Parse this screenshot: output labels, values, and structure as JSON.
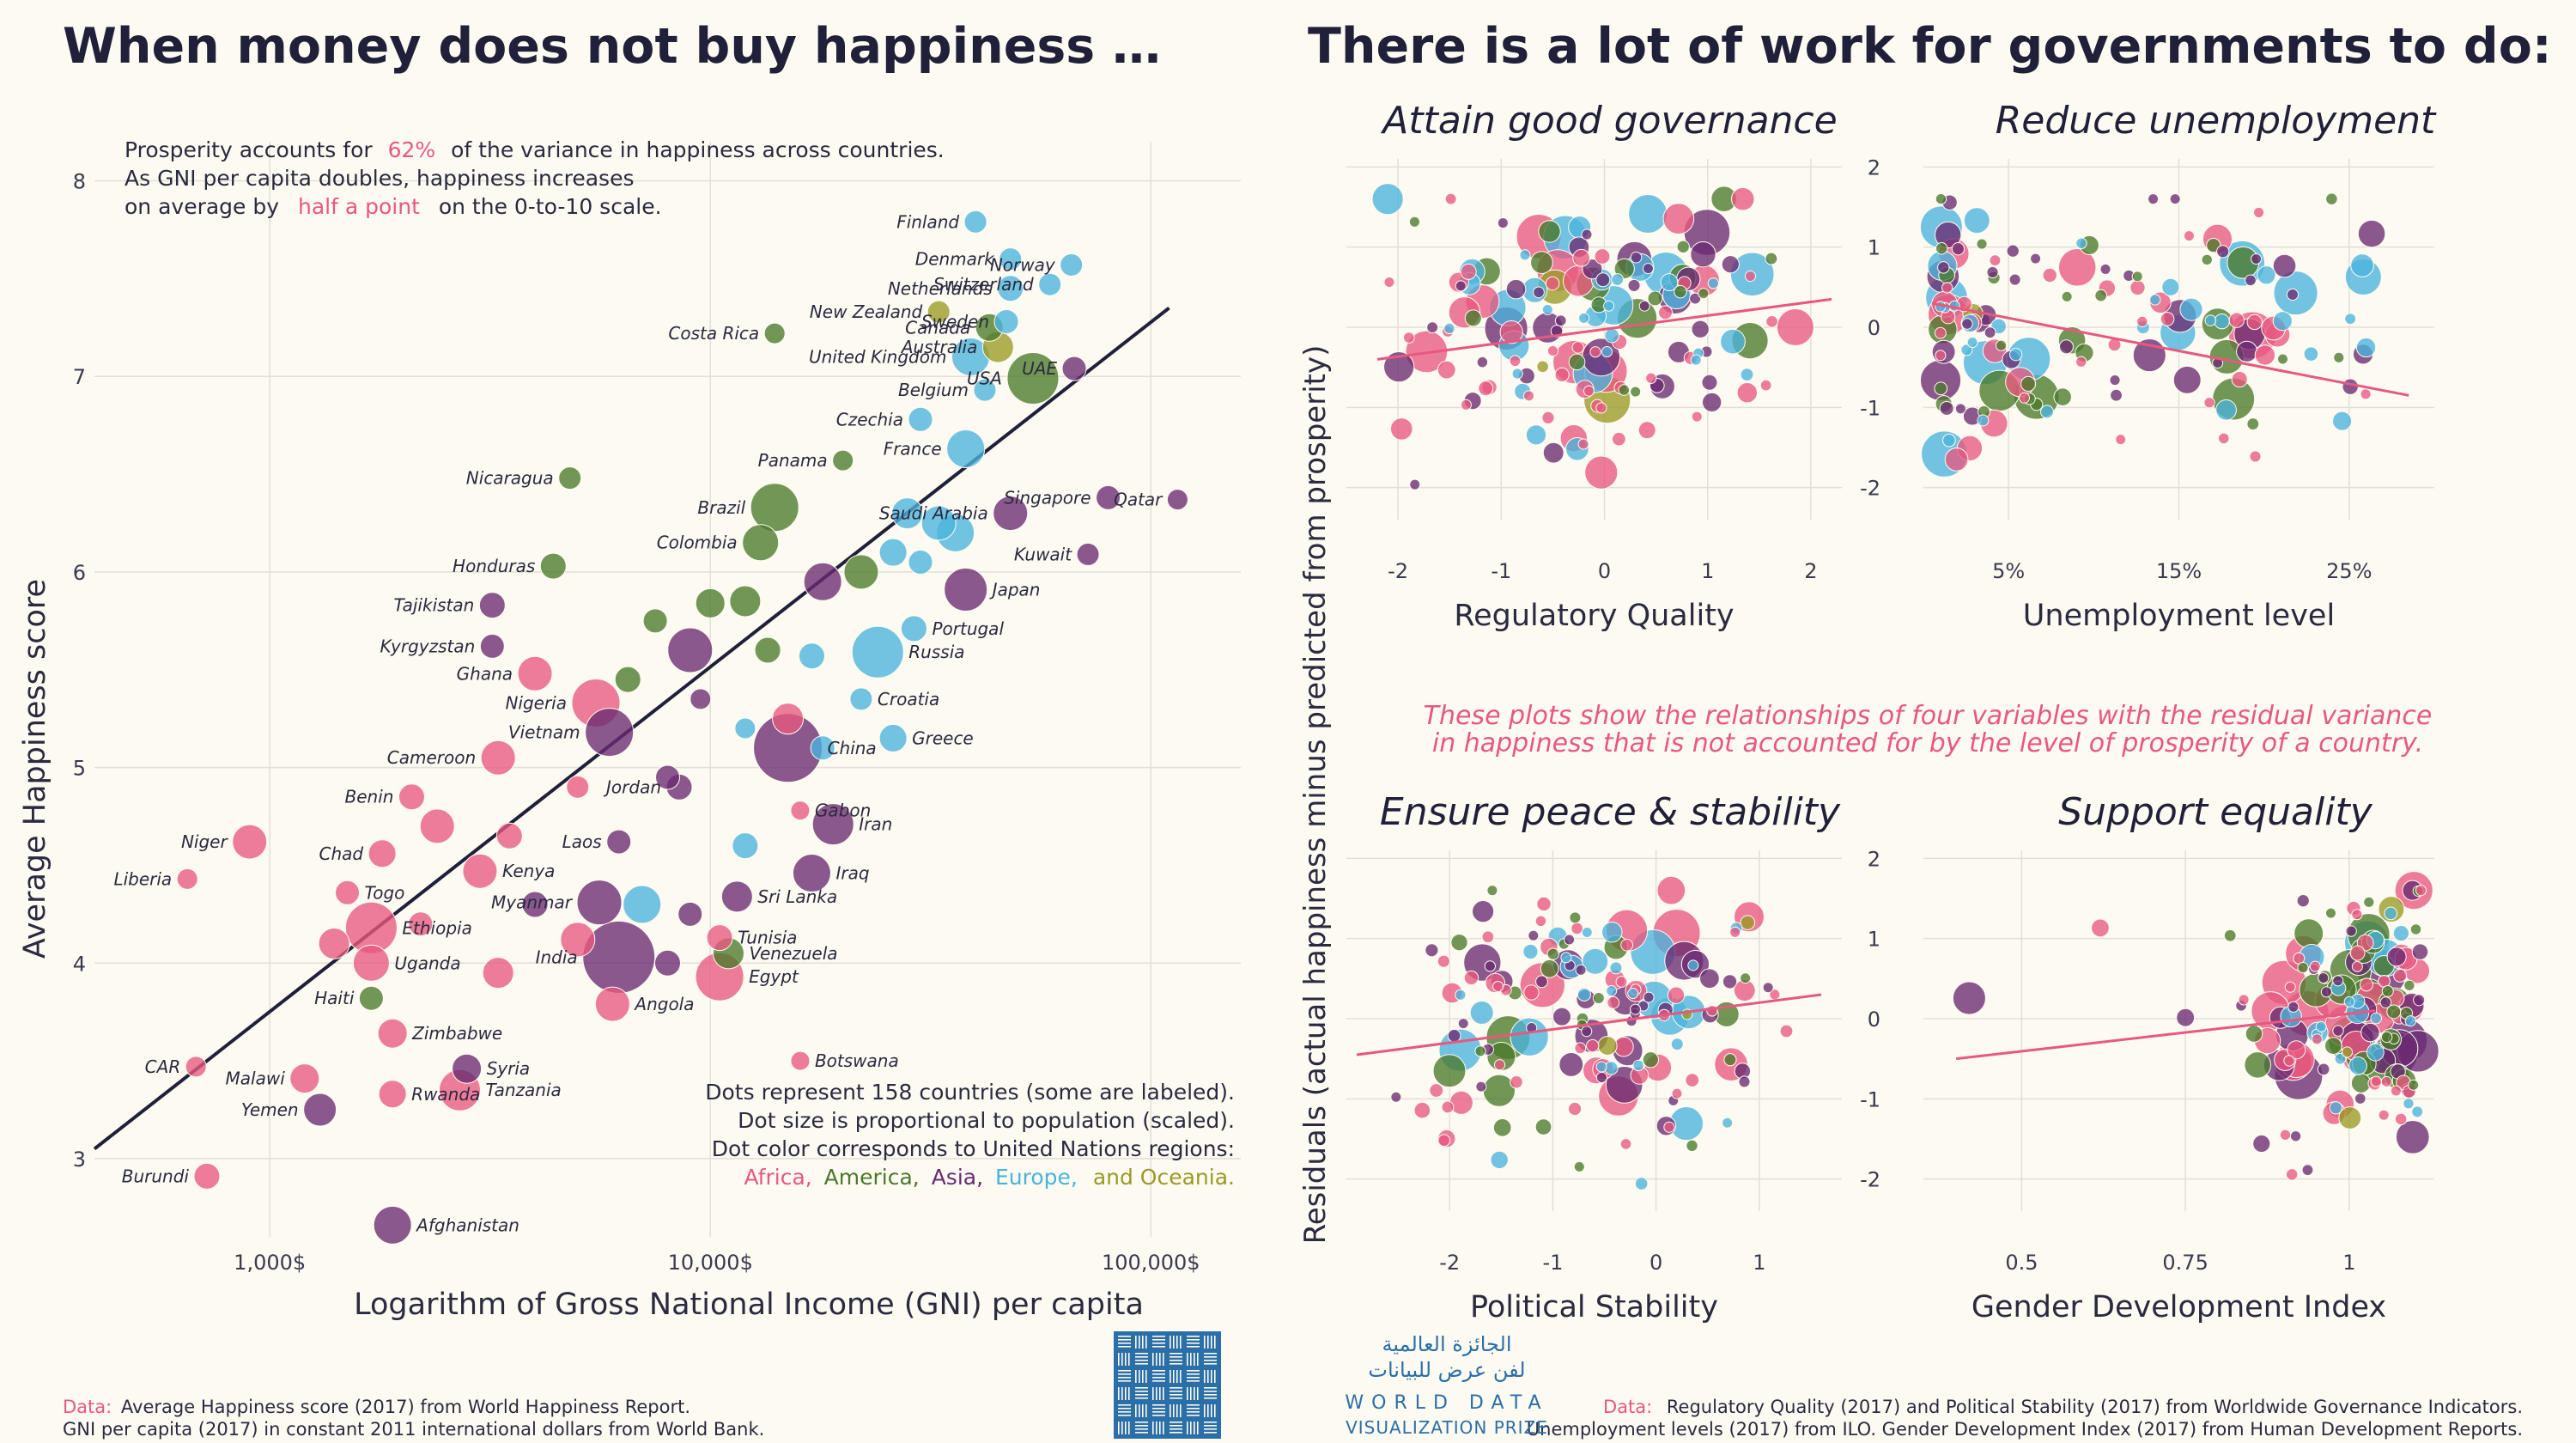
{
  "titles": {
    "left": "When money does not buy happiness …",
    "right": "There is a lot of work for governments to do:"
  },
  "colors": {
    "Africa": "#e8587f",
    "America": "#4a7a2a",
    "Asia": "#6a2a72",
    "Europe": "#4ab3dc",
    "Oceania": "#9a9a25",
    "fit_main": "#20203a",
    "fit_small": "#e8587f"
  },
  "main_notes": {
    "line1_a": "Prosperity accounts for",
    "line1_b": "62%",
    "line1_c": "of the variance in happiness across countries.",
    "line2": "As GNI per capita doubles, happiness increases",
    "line3_a": "on average by",
    "line3_b": "half a point",
    "line3_c": "on the 0-to-10 scale.",
    "legend1": "Dots represent 158 countries (some are labeled).",
    "legend2": "Dot size is proportional to population (scaled).",
    "legend3": "Dot color corresponds to United Nations regions:",
    "legend_africa": "Africa,",
    "legend_america": "America,",
    "legend_asia": "Asia,",
    "legend_europe": "Europe,",
    "legend_oceania": "and Oceania."
  },
  "residual_note": {
    "line1": "These plots show the relationships of four variables with the residual variance",
    "line2": "in happiness that is not accounted for by the level of prosperity of a country."
  },
  "shared_ylabel": "Residuals (actual happiness minus predicted from prosperity)",
  "sources": {
    "left_a": "Data:",
    "left_b": "Average Happiness score (2017) from World Happiness Report.",
    "left_c": "GNI per capita (2017) in constant 2011 international dollars from World Bank.",
    "right_a": "Data:",
    "right_b": "Regulatory Quality (2017) and Political Stability (2017) from Worldwide Governance Indicators.",
    "right_c": "Unemployment levels (2017) from ILO. Gender Development Index (2017) from Human Development Reports."
  },
  "logo": {
    "arabic1": "الجائزة العالمية",
    "arabic2": "لفن عرض للبيانات",
    "en1": "WORLD DATA",
    "en2": "VISUALIZATION PRIZE"
  },
  "chart_data": [
    {
      "type": "scatter",
      "title": "When money does not buy happiness …",
      "xlabel": "Logarithm of Gross National Income (GNI) per capita",
      "ylabel": "Average Happiness score",
      "xscale": "log",
      "xlim": [
        400,
        160000
      ],
      "ylim": [
        2.6,
        8.2
      ],
      "xticks": [
        1000,
        10000,
        100000
      ],
      "xtick_labels": [
        "1,000$",
        "10,000$",
        "100,000$"
      ],
      "yticks": [
        3,
        4,
        5,
        6,
        7,
        8
      ],
      "grid": true,
      "fit_line": {
        "x": [
          400,
          110000
        ],
        "y": [
          3.05,
          7.35
        ]
      },
      "labeled_points": [
        {
          "name": "Finland",
          "gni": 40000,
          "happiness": 7.79,
          "region": "Europe",
          "size": 13
        },
        {
          "name": "Denmark",
          "gni": 48000,
          "happiness": 7.6,
          "region": "Europe",
          "size": 13
        },
        {
          "name": "Norway",
          "gni": 66000,
          "happiness": 7.57,
          "region": "Europe",
          "size": 13
        },
        {
          "name": "Netherlands",
          "gni": 48000,
          "happiness": 7.45,
          "region": "Europe",
          "size": 15
        },
        {
          "name": "Switzerland",
          "gni": 59000,
          "happiness": 7.47,
          "region": "Europe",
          "size": 13
        },
        {
          "name": "New Zealand",
          "gni": 33000,
          "happiness": 7.33,
          "region": "Oceania",
          "size": 13
        },
        {
          "name": "Canada",
          "gni": 43000,
          "happiness": 7.25,
          "region": "America",
          "size": 16
        },
        {
          "name": "Sweden",
          "gni": 47000,
          "happiness": 7.28,
          "region": "Europe",
          "size": 14
        },
        {
          "name": "Costa Rica",
          "gni": 14000,
          "happiness": 7.22,
          "region": "America",
          "size": 12
        },
        {
          "name": "UAE",
          "gni": 67000,
          "happiness": 7.04,
          "region": "Asia",
          "size": 14
        },
        {
          "name": "United Kingdom",
          "gni": 39000,
          "happiness": 7.1,
          "region": "Europe",
          "size": 22
        },
        {
          "name": "Australia",
          "gni": 45000,
          "happiness": 7.15,
          "region": "Oceania",
          "size": 18
        },
        {
          "name": "USA",
          "gni": 54000,
          "happiness": 6.99,
          "region": "America",
          "size": 30
        },
        {
          "name": "Belgium",
          "gni": 42000,
          "happiness": 6.93,
          "region": "Europe",
          "size": 13
        },
        {
          "name": "Czechia",
          "gni": 30000,
          "happiness": 6.78,
          "region": "Europe",
          "size": 14
        },
        {
          "name": "France",
          "gni": 38000,
          "happiness": 6.63,
          "region": "Europe",
          "size": 22
        },
        {
          "name": "Panama",
          "gni": 20000,
          "happiness": 6.57,
          "region": "America",
          "size": 12
        },
        {
          "name": "Nicaragua",
          "gni": 4800,
          "happiness": 6.48,
          "region": "America",
          "size": 13
        },
        {
          "name": "Singapore",
          "gni": 80000,
          "happiness": 6.38,
          "region": "Asia",
          "size": 14
        },
        {
          "name": "Qatar",
          "gni": 115000,
          "happiness": 6.37,
          "region": "Asia",
          "size": 12
        },
        {
          "name": "Brazil",
          "gni": 14000,
          "happiness": 6.33,
          "region": "America",
          "size": 28
        },
        {
          "name": "Saudi Arabia",
          "gni": 48000,
          "happiness": 6.3,
          "region": "Asia",
          "size": 20
        },
        {
          "name": "Colombia",
          "gni": 13000,
          "happiness": 6.15,
          "region": "America",
          "size": 21
        },
        {
          "name": "Kuwait",
          "gni": 72000,
          "happiness": 6.09,
          "region": "Asia",
          "size": 13
        },
        {
          "name": "Honduras",
          "gni": 4400,
          "happiness": 6.03,
          "region": "America",
          "size": 15
        },
        {
          "name": "Japan",
          "gni": 38000,
          "happiness": 5.91,
          "region": "Asia",
          "size": 25
        },
        {
          "name": "Tajikistan",
          "gni": 3200,
          "happiness": 5.83,
          "region": "Asia",
          "size": 15
        },
        {
          "name": "Portugal",
          "gni": 29000,
          "happiness": 5.71,
          "region": "Europe",
          "size": 15
        },
        {
          "name": "Kyrgyzstan",
          "gni": 3200,
          "happiness": 5.62,
          "region": "Asia",
          "size": 14
        },
        {
          "name": "Russia",
          "gni": 24000,
          "happiness": 5.59,
          "region": "Europe",
          "size": 30
        },
        {
          "name": "Ghana",
          "gni": 4000,
          "happiness": 5.48,
          "region": "Africa",
          "size": 20
        },
        {
          "name": "Nigeria",
          "gni": 5500,
          "happiness": 5.33,
          "region": "Africa",
          "size": 28
        },
        {
          "name": "Croatia",
          "gni": 22000,
          "happiness": 5.35,
          "region": "Europe",
          "size": 13
        },
        {
          "name": "Vietnam",
          "gni": 5900,
          "happiness": 5.18,
          "region": "Asia",
          "size": 28
        },
        {
          "name": "Greece",
          "gni": 26000,
          "happiness": 5.15,
          "region": "Europe",
          "size": 16
        },
        {
          "name": "Cameroon",
          "gni": 3300,
          "happiness": 5.05,
          "region": "Africa",
          "size": 20
        },
        {
          "name": "China",
          "gni": 15000,
          "happiness": 5.1,
          "region": "Asia",
          "size": 40
        },
        {
          "name": "Jordan",
          "gni": 8500,
          "happiness": 4.9,
          "region": "Asia",
          "size": 15
        },
        {
          "name": "Benin",
          "gni": 2100,
          "happiness": 4.85,
          "region": "Africa",
          "size": 15
        },
        {
          "name": "Gabon",
          "gni": 16000,
          "happiness": 4.78,
          "region": "Africa",
          "size": 11
        },
        {
          "name": "Iran",
          "gni": 19000,
          "happiness": 4.71,
          "region": "Asia",
          "size": 24
        },
        {
          "name": "Niger",
          "gni": 900,
          "happiness": 4.62,
          "region": "Africa",
          "size": 20
        },
        {
          "name": "Chad",
          "gni": 1800,
          "happiness": 4.56,
          "region": "Africa",
          "size": 16
        },
        {
          "name": "Laos",
          "gni": 6200,
          "happiness": 4.62,
          "region": "Asia",
          "size": 14
        },
        {
          "name": "Kenya",
          "gni": 3000,
          "happiness": 4.47,
          "region": "Africa",
          "size": 20
        },
        {
          "name": "Liberia",
          "gni": 650,
          "happiness": 4.43,
          "region": "Africa",
          "size": 12
        },
        {
          "name": "Iraq",
          "gni": 17000,
          "happiness": 4.46,
          "region": "Asia",
          "size": 22
        },
        {
          "name": "Togo",
          "gni": 1500,
          "happiness": 4.36,
          "region": "Africa",
          "size": 14
        },
        {
          "name": "Sri Lanka",
          "gni": 11500,
          "happiness": 4.34,
          "region": "Asia",
          "size": 18
        },
        {
          "name": "Myanmar",
          "gni": 5600,
          "happiness": 4.31,
          "region": "Asia",
          "size": 26
        },
        {
          "name": "Ethiopia",
          "gni": 1700,
          "happiness": 4.18,
          "region": "Africa",
          "size": 30
        },
        {
          "name": "Tunisia",
          "gni": 10500,
          "happiness": 4.13,
          "region": "Africa",
          "size": 15
        },
        {
          "name": "India",
          "gni": 6200,
          "happiness": 4.03,
          "region": "Asia",
          "size": 42
        },
        {
          "name": "Uganda",
          "gni": 1700,
          "happiness": 4.0,
          "region": "Africa",
          "size": 21
        },
        {
          "name": "Venezuela",
          "gni": 11000,
          "happiness": 4.05,
          "region": "America",
          "size": 18
        },
        {
          "name": "Egypt",
          "gni": 10500,
          "happiness": 3.93,
          "region": "Africa",
          "size": 28
        },
        {
          "name": "Haiti",
          "gni": 1700,
          "happiness": 3.82,
          "region": "America",
          "size": 14
        },
        {
          "name": "Angola",
          "gni": 6000,
          "happiness": 3.79,
          "region": "Africa",
          "size": 20
        },
        {
          "name": "Zimbabwe",
          "gni": 1900,
          "happiness": 3.64,
          "region": "Africa",
          "size": 17
        },
        {
          "name": "Botswana",
          "gni": 16000,
          "happiness": 3.5,
          "region": "Africa",
          "size": 11
        },
        {
          "name": "CAR",
          "gni": 680,
          "happiness": 3.47,
          "region": "Africa",
          "size": 12
        },
        {
          "name": "Malawi",
          "gni": 1200,
          "happiness": 3.41,
          "region": "Africa",
          "size": 17
        },
        {
          "name": "Syria",
          "gni": 2800,
          "happiness": 3.46,
          "region": "Asia",
          "size": 17
        },
        {
          "name": "Tanzania",
          "gni": 2700,
          "happiness": 3.35,
          "region": "Africa",
          "size": 24
        },
        {
          "name": "Yemen",
          "gni": 1300,
          "happiness": 3.25,
          "region": "Asia",
          "size": 19
        },
        {
          "name": "Rwanda",
          "gni": 1900,
          "happiness": 3.33,
          "region": "Africa",
          "size": 16
        },
        {
          "name": "Burundi",
          "gni": 720,
          "happiness": 2.91,
          "region": "Africa",
          "size": 15
        },
        {
          "name": "Afghanistan",
          "gni": 1900,
          "happiness": 2.66,
          "region": "Asia",
          "size": 22
        }
      ],
      "unlabeled_points": [
        {
          "gni": 28000,
          "happiness": 6.3,
          "region": "Europe",
          "size": 18
        },
        {
          "gni": 33000,
          "happiness": 6.25,
          "region": "Europe",
          "size": 20
        },
        {
          "gni": 36000,
          "happiness": 6.2,
          "region": "Europe",
          "size": 22
        },
        {
          "name": "",
          "gni": 26000,
          "happiness": 6.1,
          "region": "Europe",
          "size": 16
        },
        {
          "gni": 30000,
          "happiness": 6.05,
          "region": "Europe",
          "size": 14
        },
        {
          "gni": 22000,
          "happiness": 6.0,
          "region": "America",
          "size": 20
        },
        {
          "gni": 18000,
          "happiness": 5.95,
          "region": "Asia",
          "size": 22
        },
        {
          "gni": 12000,
          "happiness": 5.85,
          "region": "America",
          "size": 18
        },
        {
          "gni": 9000,
          "happiness": 5.6,
          "region": "Asia",
          "size": 26
        },
        {
          "gni": 7500,
          "happiness": 5.75,
          "region": "America",
          "size": 14
        },
        {
          "gni": 10000,
          "happiness": 5.84,
          "region": "America",
          "size": 17
        },
        {
          "gni": 13500,
          "happiness": 5.6,
          "region": "America",
          "size": 15
        },
        {
          "gni": 17000,
          "happiness": 5.57,
          "region": "Europe",
          "size": 15
        },
        {
          "gni": 6500,
          "happiness": 5.45,
          "region": "America",
          "size": 15
        },
        {
          "gni": 9500,
          "happiness": 5.35,
          "region": "Asia",
          "size": 12
        },
        {
          "gni": 15000,
          "happiness": 5.25,
          "region": "Africa",
          "size": 18
        },
        {
          "gni": 12000,
          "happiness": 5.2,
          "region": "Europe",
          "size": 12
        },
        {
          "gni": 18000,
          "happiness": 5.1,
          "region": "Europe",
          "size": 14
        },
        {
          "gni": 8000,
          "happiness": 4.95,
          "region": "Asia",
          "size": 14
        },
        {
          "gni": 5000,
          "happiness": 4.9,
          "region": "Africa",
          "size": 13
        },
        {
          "gni": 2400,
          "happiness": 4.7,
          "region": "Africa",
          "size": 20
        },
        {
          "gni": 3500,
          "happiness": 4.65,
          "region": "Africa",
          "size": 15
        },
        {
          "gni": 4000,
          "happiness": 4.3,
          "region": "Asia",
          "size": 15
        },
        {
          "gni": 1400,
          "happiness": 4.1,
          "region": "Africa",
          "size": 18
        },
        {
          "gni": 2200,
          "happiness": 4.2,
          "region": "Africa",
          "size": 14
        },
        {
          "gni": 3300,
          "happiness": 3.95,
          "region": "Africa",
          "size": 18
        },
        {
          "gni": 8000,
          "happiness": 4.0,
          "region": "Asia",
          "size": 15
        },
        {
          "gni": 5000,
          "happiness": 4.12,
          "region": "Africa",
          "size": 20
        },
        {
          "gni": 12000,
          "happiness": 4.6,
          "region": "Europe",
          "size": 15
        },
        {
          "gni": 9000,
          "happiness": 4.25,
          "region": "Asia",
          "size": 14
        },
        {
          "gni": 7000,
          "happiness": 4.3,
          "region": "Europe",
          "size": 22
        }
      ]
    },
    {
      "type": "scatter",
      "title": "Attain good governance",
      "xlabel": "Regulatory Quality",
      "xlim": [
        -2.5,
        2.3
      ],
      "ylim": [
        -2.4,
        2.1
      ],
      "xticks": [
        -2,
        -1,
        0,
        1,
        2
      ],
      "xtick_labels": [
        "-2",
        "-1",
        "0",
        "1",
        "2"
      ],
      "yticks": [
        -2,
        -1,
        0,
        1,
        2
      ],
      "grid": true,
      "fit_line": {
        "x": [
          -2.2,
          2.2
        ],
        "y": [
          -0.4,
          0.35
        ]
      }
    },
    {
      "type": "scatter",
      "title": "Reduce unemployment",
      "xlabel": "Unemployment level",
      "xlim": [
        0,
        30
      ],
      "ylim": [
        -2.4,
        2.1
      ],
      "xticks": [
        5,
        15,
        25
      ],
      "xtick_labels": [
        "5%",
        "15%",
        "25%"
      ],
      "yticks": [
        -2,
        -1,
        0,
        1,
        2
      ],
      "ytick_labels": [
        "-2",
        "-1",
        "0",
        "1",
        "2"
      ],
      "grid": true,
      "fit_line": {
        "x": [
          0.5,
          28.5
        ],
        "y": [
          0.3,
          -0.85
        ]
      }
    },
    {
      "type": "scatter",
      "title": "Ensure peace & stability",
      "xlabel": "Political Stability",
      "xlim": [
        -3,
        1.8
      ],
      "ylim": [
        -2.4,
        2.1
      ],
      "xticks": [
        -2,
        -1,
        0,
        1
      ],
      "xtick_labels": [
        "-2",
        "-1",
        "0",
        "1"
      ],
      "yticks": [
        -2,
        -1,
        0,
        1,
        2
      ],
      "grid": true,
      "fit_line": {
        "x": [
          -2.9,
          1.6
        ],
        "y": [
          -0.45,
          0.3
        ]
      }
    },
    {
      "type": "scatter",
      "title": "Support equality",
      "xlabel": "Gender Development Index",
      "xlim": [
        0.35,
        1.13
      ],
      "ylim": [
        -2.4,
        2.1
      ],
      "xticks": [
        0.5,
        0.75,
        1
      ],
      "xtick_labels": [
        "0.5",
        "0.75",
        "1"
      ],
      "yticks": [
        -2,
        -1,
        0,
        1,
        2
      ],
      "ytick_labels": [
        "-2",
        "-1",
        "0",
        "1",
        "2"
      ],
      "grid": true,
      "fit_line": {
        "x": [
          0.4,
          1.04
        ],
        "y": [
          -0.5,
          0.1
        ]
      }
    }
  ]
}
